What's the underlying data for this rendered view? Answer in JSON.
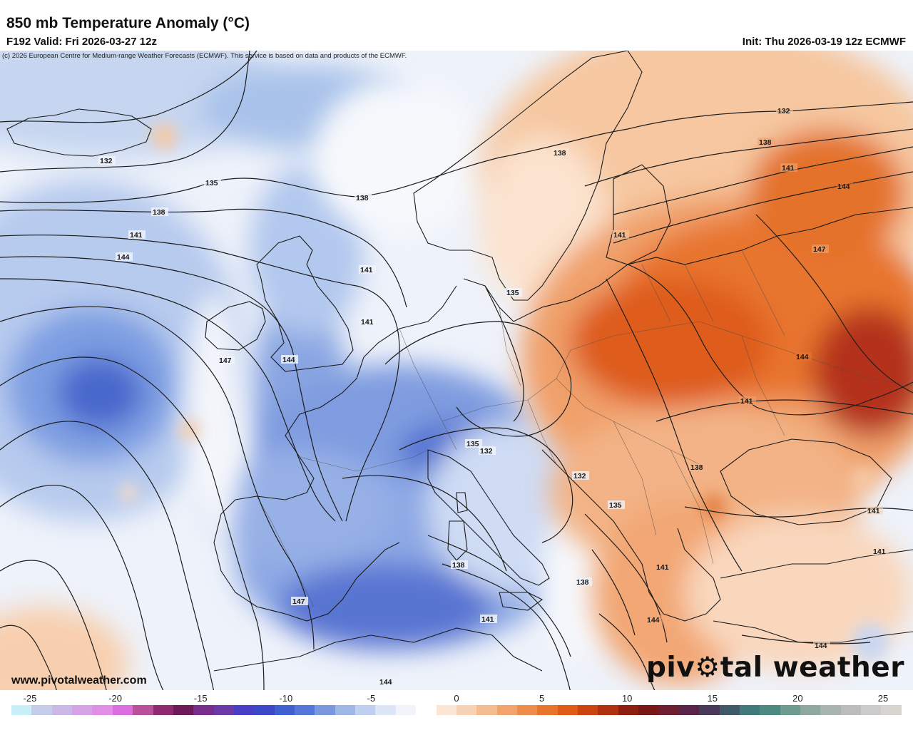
{
  "header": {
    "title": "850 mb Temperature Anomaly (°C)",
    "valid": "F192 Valid: Fri 2026-03-27 12z",
    "init": "Init: Thu 2026-03-19 12z ECMWF",
    "copyright": "(c) 2026 European Centre for Medium-range Weather Forecasts (ECMWF). This service is based on data and products of the ECMWF."
  },
  "footer": {
    "website": "www.pivotalweather.com",
    "logo_pre": "piv",
    "logo_post": "tal weather"
  },
  "colorbar": {
    "labels": [
      "-25",
      "-20",
      "-15",
      "-10",
      "-5",
      "0",
      "5",
      "10",
      "15",
      "20",
      "25"
    ],
    "colors": [
      "#c8f0f8",
      "#c5cdea",
      "#cbb8e6",
      "#d6a4e6",
      "#e08ee6",
      "#da6ee0",
      "#b8509a",
      "#8e2a6e",
      "#6e1a58",
      "#7a2c8a",
      "#6a3aa8",
      "#4a3ec6",
      "#3c48c8",
      "#4060d0",
      "#5578d8",
      "#7a98e0",
      "#a0b8e8",
      "#c0d0f0",
      "#dde6f6",
      "#f2f4fa",
      "#ffffff",
      "#fbe6d6",
      "#f8d2b4",
      "#f5bc90",
      "#f2a46c",
      "#ee8c4c",
      "#e8742e",
      "#e05a18",
      "#cc4410",
      "#b03010",
      "#8e1e10",
      "#7a1818",
      "#6e1e30",
      "#5a2448",
      "#4a3a5a",
      "#405a6a",
      "#407a7a",
      "#4a8a80",
      "#6e9c90",
      "#8ea8a0",
      "#a8b4b0",
      "#bcbcbc",
      "#cccccc",
      "#d8d4d0"
    ]
  },
  "contour_labels": [
    "132",
    "135",
    "138",
    "141",
    "144",
    "147",
    "147",
    "144",
    "141",
    "138",
    "135",
    "132",
    "138",
    "141",
    "144",
    "147",
    "141",
    "138",
    "141",
    "144",
    "141",
    "138",
    "135",
    "132",
    "132",
    "135",
    "138",
    "141",
    "144",
    "141",
    "138",
    "141",
    "141",
    "144",
    "144",
    "147",
    "141",
    "138"
  ]
}
